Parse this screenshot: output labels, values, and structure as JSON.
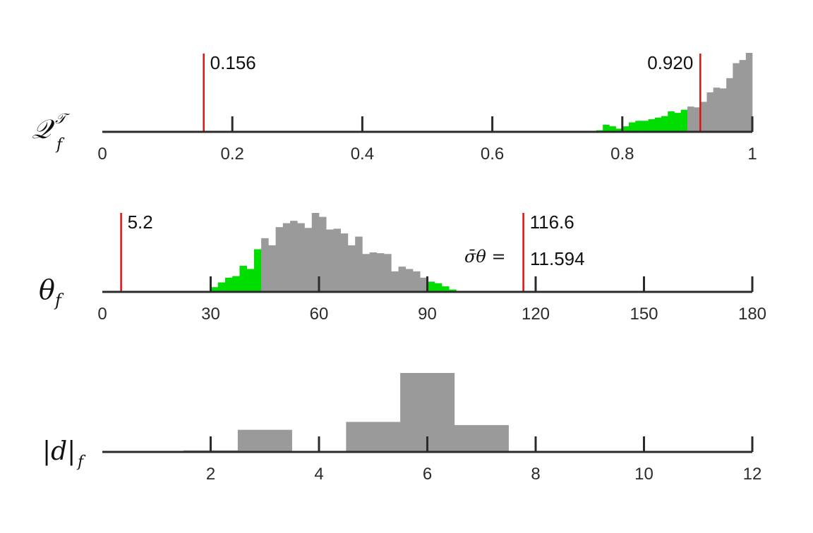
{
  "colors": {
    "gray": "#9a9a9a",
    "green": "#00dd00",
    "red": "#e01010",
    "axis": "#2b2b2b",
    "yellow": "#d4b000"
  },
  "chart_data": [
    {
      "type": "bar",
      "ylabel": "Q_f^T",
      "xlim": [
        0,
        1
      ],
      "xticks": [
        0,
        0.2,
        0.4,
        0.6,
        0.8,
        1
      ],
      "xtick_labels": [
        "0",
        "0.2",
        "0.4",
        "0.6",
        "0.8",
        "1"
      ],
      "bin_width": 0.01,
      "bins": [
        {
          "x": 0.525,
          "h": 0.005,
          "c": "yellow"
        },
        {
          "x": 0.725,
          "h": 0.01,
          "c": "green"
        },
        {
          "x": 0.735,
          "h": 0.01,
          "c": "green"
        },
        {
          "x": 0.755,
          "h": 0.01,
          "c": "green"
        },
        {
          "x": 0.765,
          "h": 0.02,
          "c": "green"
        },
        {
          "x": 0.775,
          "h": 0.09,
          "c": "green"
        },
        {
          "x": 0.785,
          "h": 0.07,
          "c": "green"
        },
        {
          "x": 0.795,
          "h": 0.04,
          "c": "green"
        },
        {
          "x": 0.805,
          "h": 0.07,
          "c": "green"
        },
        {
          "x": 0.815,
          "h": 0.12,
          "c": "green"
        },
        {
          "x": 0.825,
          "h": 0.14,
          "c": "green"
        },
        {
          "x": 0.835,
          "h": 0.14,
          "c": "green"
        },
        {
          "x": 0.845,
          "h": 0.16,
          "c": "green"
        },
        {
          "x": 0.855,
          "h": 0.18,
          "c": "green"
        },
        {
          "x": 0.865,
          "h": 0.2,
          "c": "green"
        },
        {
          "x": 0.875,
          "h": 0.26,
          "c": "green"
        },
        {
          "x": 0.885,
          "h": 0.24,
          "c": "green"
        },
        {
          "x": 0.895,
          "h": 0.28,
          "c": "green"
        },
        {
          "x": 0.905,
          "h": 0.32,
          "c": "gray"
        },
        {
          "x": 0.915,
          "h": 0.31,
          "c": "gray"
        },
        {
          "x": 0.925,
          "h": 0.38,
          "c": "gray"
        },
        {
          "x": 0.935,
          "h": 0.5,
          "c": "gray"
        },
        {
          "x": 0.945,
          "h": 0.56,
          "c": "gray"
        },
        {
          "x": 0.955,
          "h": 0.55,
          "c": "gray"
        },
        {
          "x": 0.965,
          "h": 0.68,
          "c": "gray"
        },
        {
          "x": 0.975,
          "h": 0.87,
          "c": "gray"
        },
        {
          "x": 0.985,
          "h": 0.91,
          "c": "gray"
        },
        {
          "x": 0.995,
          "h": 1.0,
          "c": "gray"
        }
      ],
      "vlines": [
        {
          "x": 0.156,
          "label": "0.156",
          "label_side": "right"
        },
        {
          "x": 0.92,
          "label": "0.920",
          "label_side": "left"
        }
      ]
    },
    {
      "type": "bar",
      "ylabel": "θ_f",
      "xlim": [
        0,
        180
      ],
      "xticks": [
        0,
        30,
        60,
        90,
        120,
        150,
        180
      ],
      "xtick_labels": [
        "0",
        "30",
        "60",
        "90",
        "120",
        "150",
        "180"
      ],
      "bin_width": 2,
      "bins": [
        {
          "x": 27,
          "h": 0.01,
          "c": "yellow"
        },
        {
          "x": 29,
          "h": 0.01,
          "c": "yellow"
        },
        {
          "x": 31,
          "h": 0.06,
          "c": "green"
        },
        {
          "x": 33,
          "h": 0.12,
          "c": "green"
        },
        {
          "x": 35,
          "h": 0.18,
          "c": "green"
        },
        {
          "x": 37,
          "h": 0.2,
          "c": "green"
        },
        {
          "x": 39,
          "h": 0.33,
          "c": "green"
        },
        {
          "x": 41,
          "h": 0.29,
          "c": "green"
        },
        {
          "x": 43,
          "h": 0.54,
          "c": "green"
        },
        {
          "x": 45,
          "h": 0.68,
          "c": "gray"
        },
        {
          "x": 47,
          "h": 0.59,
          "c": "gray"
        },
        {
          "x": 49,
          "h": 0.82,
          "c": "gray"
        },
        {
          "x": 51,
          "h": 0.87,
          "c": "gray"
        },
        {
          "x": 53,
          "h": 0.9,
          "c": "gray"
        },
        {
          "x": 55,
          "h": 0.87,
          "c": "gray"
        },
        {
          "x": 57,
          "h": 0.81,
          "c": "gray"
        },
        {
          "x": 59,
          "h": 1.0,
          "c": "gray"
        },
        {
          "x": 61,
          "h": 0.95,
          "c": "gray"
        },
        {
          "x": 63,
          "h": 0.79,
          "c": "gray"
        },
        {
          "x": 65,
          "h": 0.8,
          "c": "gray"
        },
        {
          "x": 67,
          "h": 0.74,
          "c": "gray"
        },
        {
          "x": 69,
          "h": 0.59,
          "c": "gray"
        },
        {
          "x": 71,
          "h": 0.7,
          "c": "gray"
        },
        {
          "x": 73,
          "h": 0.48,
          "c": "gray"
        },
        {
          "x": 75,
          "h": 0.5,
          "c": "gray"
        },
        {
          "x": 77,
          "h": 0.49,
          "c": "gray"
        },
        {
          "x": 79,
          "h": 0.48,
          "c": "gray"
        },
        {
          "x": 81,
          "h": 0.26,
          "c": "gray"
        },
        {
          "x": 83,
          "h": 0.32,
          "c": "gray"
        },
        {
          "x": 85,
          "h": 0.29,
          "c": "gray"
        },
        {
          "x": 87,
          "h": 0.26,
          "c": "gray"
        },
        {
          "x": 89,
          "h": 0.18,
          "c": "gray"
        },
        {
          "x": 91,
          "h": 0.13,
          "c": "green"
        },
        {
          "x": 93,
          "h": 0.11,
          "c": "green"
        },
        {
          "x": 95,
          "h": 0.07,
          "c": "green"
        },
        {
          "x": 97,
          "h": 0.03,
          "c": "green"
        }
      ],
      "vlines": [
        {
          "x": 5.2,
          "label": "5.2",
          "label_side": "right"
        },
        {
          "x": 116.6,
          "label": "116.6",
          "label_side": "right"
        }
      ],
      "annotation": {
        "lhs": "σ̄θ =",
        "value": "11.594"
      }
    },
    {
      "type": "bar",
      "ylabel": "|d|_f",
      "xlim": [
        0,
        12
      ],
      "xticks": [
        2,
        4,
        6,
        8,
        10,
        12
      ],
      "xtick_labels": [
        "2",
        "4",
        "6",
        "8",
        "10",
        "12"
      ],
      "bin_width": 1,
      "bins": [
        {
          "x": 0.5,
          "h": 0.005,
          "c": "gray"
        },
        {
          "x": 1.5,
          "h": 0.01,
          "c": "gray"
        },
        {
          "x": 2,
          "h": 0.02,
          "c": "gray"
        },
        {
          "x": 3,
          "h": 0.28,
          "c": "gray"
        },
        {
          "x": 5,
          "h": 0.38,
          "c": "gray"
        },
        {
          "x": 6,
          "h": 1.0,
          "c": "gray"
        },
        {
          "x": 7,
          "h": 0.34,
          "c": "gray"
        }
      ]
    }
  ]
}
